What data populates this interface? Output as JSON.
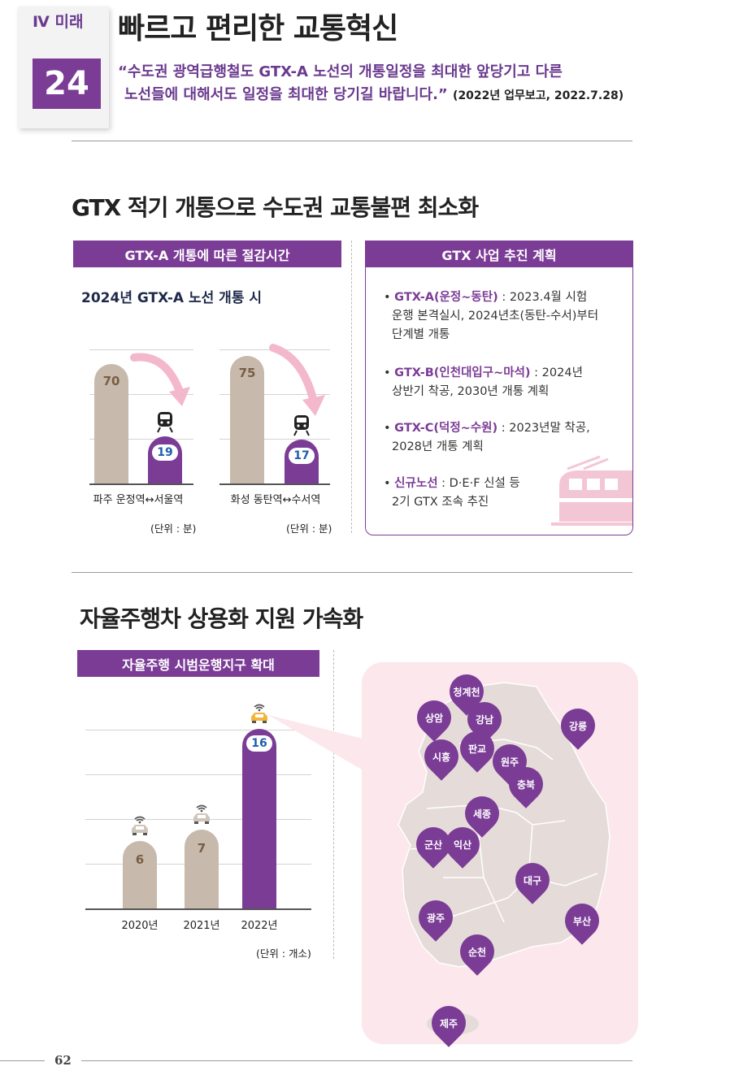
{
  "header": {
    "chapter": "Ⅳ 미래",
    "number": "24",
    "title": "빠르고 편리한 교통혁신",
    "quote_line1": "“수도권 광역급행철도 GTX-A 노선의 개통일정을 최대한 앞당기고 다른",
    "quote_line2": "노선들에 대해서도 일정을 최대한 당기길 바랍니다.”",
    "quote_source": "(2022년 업무보고, 2022.7.28)"
  },
  "gtx": {
    "section_title": "GTX 적기 개통으로 수도권 교통불편 최소화",
    "chart_header": "GTX-A 개통에 따른 절감시간",
    "chart_subtitle": "2024년 GTX-A 노선 개통 시",
    "unit": "(단위 : 분)",
    "plan_header": "GTX 사업 추진 계획",
    "plans": [
      {
        "name": "GTX-A(운정~동탄)",
        "text1": " : 2023.4월 시험",
        "text2": "운행 본격실시, 2024년초(동탄-수서)부터",
        "text3": "단계별 개통"
      },
      {
        "name": "GTX-B(인천대입구~마석)",
        "text1": " : 2024년",
        "text2": "상반기 착공, 2030년 개통 계획",
        "text3": ""
      },
      {
        "name": "GTX-C(덕정~수원)",
        "text1": " : 2023년말 착공,",
        "text2": "2028년 개통 계획",
        "text3": ""
      },
      {
        "name": "신규노선",
        "text1": " : D·E·F 신설 등",
        "text2": "2기 GTX 조속 추진",
        "text3": ""
      }
    ]
  },
  "auto": {
    "section_title": "자율주행차 상용화 지원 가속화",
    "chart_header": "자율주행 시범운행지구 확대",
    "unit": "(단위 : 개소)",
    "regions": [
      "청계천",
      "상암",
      "강남",
      "강릉",
      "시흥",
      "판교",
      "원주",
      "충북",
      "세종",
      "군산",
      "익산",
      "대구",
      "광주",
      "부산",
      "순천",
      "제주"
    ]
  },
  "chart_data": [
    {
      "type": "bar",
      "title": "GTX-A 개통에 따른 절감시간",
      "subtitle": "2024년 GTX-A 노선 개통 시",
      "categories": [
        "파주 운정역↔서울역",
        "화성 동탄역↔수서역"
      ],
      "series": [
        {
          "values": [
            70,
            75
          ],
          "color": "#c7b9ab"
        },
        {
          "values": [
            19,
            17
          ],
          "color": "#7b3c96"
        }
      ],
      "unit": "(단위 : 분)",
      "ylim": [
        0,
        80
      ]
    },
    {
      "type": "bar",
      "title": "자율주행 시범운행지구 확대",
      "categories": [
        "2020년",
        "2021년",
        "2022년"
      ],
      "values": [
        6,
        7,
        16
      ],
      "colors": [
        "#c7b9ab",
        "#c7b9ab",
        "#7b3c96"
      ],
      "unit": "(단위 : 개소)",
      "ylim": [
        0,
        20
      ]
    }
  ],
  "footer": {
    "page": "62"
  }
}
